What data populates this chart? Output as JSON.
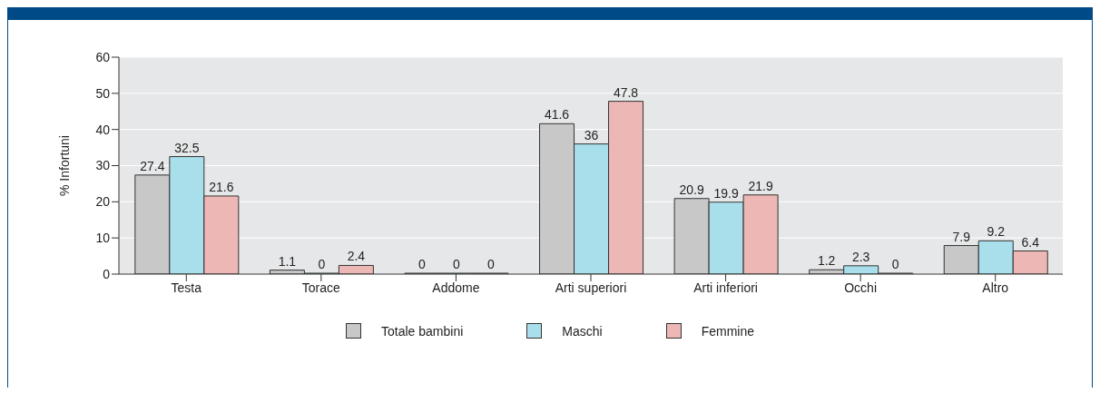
{
  "chart_data": {
    "type": "bar",
    "ylabel": "% Infortuni",
    "categories": [
      "Testa",
      "Torace",
      "Addome",
      "Arti superiori",
      "Arti inferiori",
      "Occhi",
      "Altro"
    ],
    "series": [
      {
        "name": "Totale bambini",
        "color": "#c8c8c8",
        "values": [
          27.4,
          1.1,
          0,
          41.6,
          20.9,
          1.2,
          7.9
        ]
      },
      {
        "name": "Maschi",
        "color": "#a8dfea",
        "values": [
          32.5,
          0,
          0,
          36,
          19.9,
          2.3,
          9.2
        ]
      },
      {
        "name": "Femmine",
        "color": "#ecb7b5",
        "values": [
          21.6,
          2.4,
          0,
          47.8,
          21.9,
          0,
          6.4
        ]
      }
    ],
    "ylim": [
      0,
      60
    ],
    "yticks": [
      0,
      10,
      20,
      30,
      40,
      50,
      60
    ],
    "grid": "y",
    "legend": "bottom",
    "data_labels": true
  }
}
